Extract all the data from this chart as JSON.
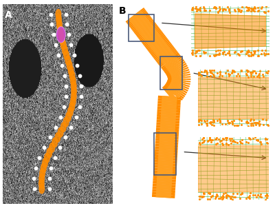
{
  "fig_width": 4.0,
  "fig_height": 3.02,
  "dpi": 100,
  "bg_color": "#ffffff",
  "panel_A_label": "A",
  "panel_B_label": "B",
  "ct_bg_mean": 0.45,
  "ct_bg_std": 0.15,
  "spine_color_orange": "#FF8C00",
  "spine_color_blue": "#4169E1",
  "spine_color_purple": "#CC44CC",
  "mesh_green_bg": "#1a8a1a",
  "mesh_green_lines": "#33AA33",
  "mesh_orange": "#FF8C00",
  "box_color": "#4a5a7a",
  "arrow_color": "#333333",
  "label_fontsize": 10
}
